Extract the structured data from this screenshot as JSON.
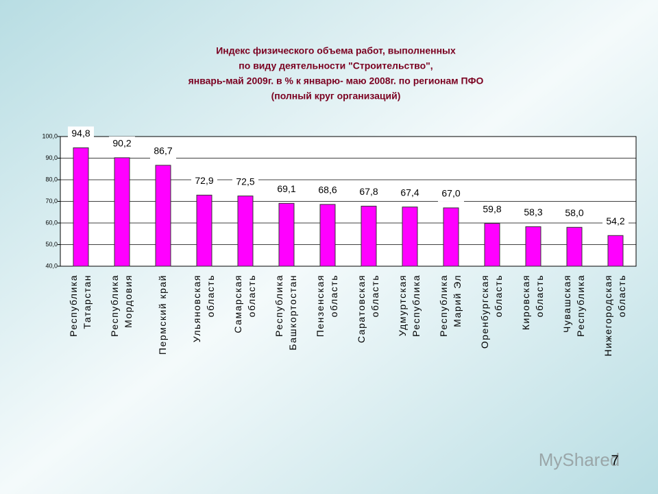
{
  "chart_data": {
    "type": "bar",
    "title": [
      "Индекс физического объема работ, выполненных",
      "по виду деятельности \"Строительство\",",
      "январь-май 2009г. в % к январю- маю 2008г. по регионам ПФО",
      "(полный круг организаций)"
    ],
    "categories": [
      "Республика\nТатарстан",
      "Республика\nМордовия",
      "Пермский край",
      "Ульяновская\nобласть",
      "Самарская\nобласть",
      "Республика\nБашкортостан",
      "Пензенская\nобласть",
      "Саратовская\nобласть",
      "Удмуртская\nРеспублика",
      "Республика\nМарий Эл",
      "Оренбургская\nобласть",
      "Кировская\nобласть",
      "Чувашская\nРеспублика",
      "Нижегородская\nобласть"
    ],
    "values": [
      94.8,
      90.2,
      86.7,
      72.9,
      72.5,
      69.1,
      68.6,
      67.8,
      67.4,
      67.0,
      59.8,
      58.3,
      58.0,
      54.2
    ],
    "value_labels": [
      "94,8",
      "90,2",
      "86,7",
      "72,9",
      "72,5",
      "69,1",
      "68,6",
      "67,8",
      "67,4",
      "67,0",
      "59,8",
      "58,3",
      "58,0",
      "54,2"
    ],
    "color": "#ff00ff",
    "ylim": [
      40,
      100
    ],
    "yticks": [
      {
        "value": 40,
        "label": "40,0"
      },
      {
        "value": 50,
        "label": "50,0"
      },
      {
        "value": 60,
        "label": "60,0"
      },
      {
        "value": 70,
        "label": "70,0"
      },
      {
        "value": 80,
        "label": "80,0"
      },
      {
        "value": 90,
        "label": "90,0"
      },
      {
        "value": 100,
        "label": "100,0"
      }
    ],
    "grid": true
  },
  "watermark": "MyShared",
  "page_number": "7"
}
